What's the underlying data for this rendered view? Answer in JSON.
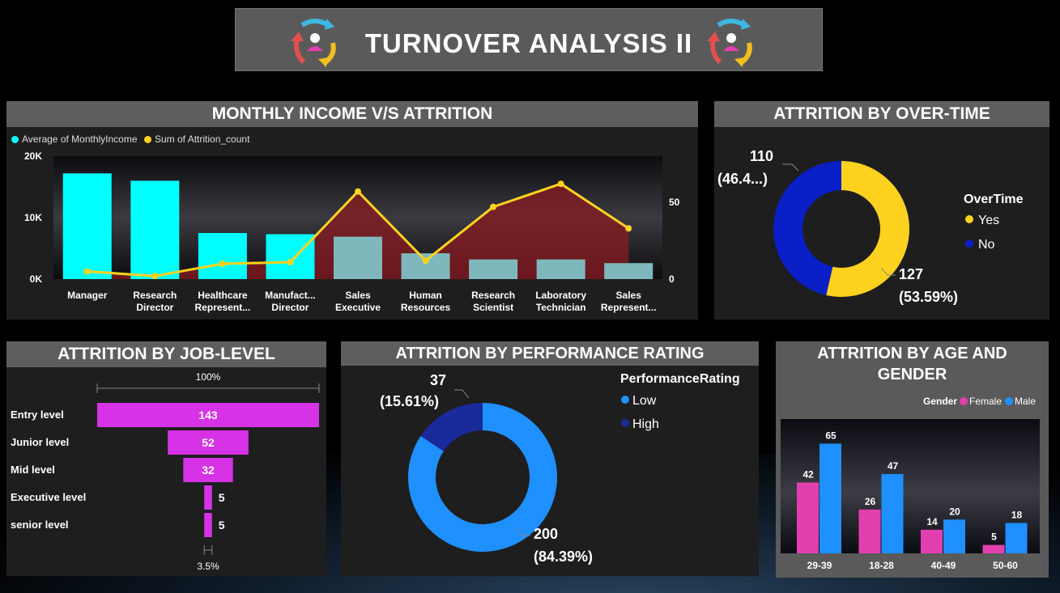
{
  "dashboard": {
    "title": "TURNOVER  ANALYSIS  II",
    "colors": {
      "cyan": "#00ffff",
      "yellow": "#ffd21f",
      "magenta": "#d633e6",
      "pink": "#e040ae",
      "blue": "#1e90ff",
      "navy": "#0a1fc8",
      "darknavy": "#1a2a9a",
      "header": "#5e5e5e",
      "panel": "#1e1e1e"
    }
  },
  "panels": {
    "income": {
      "title": "MONTHLY INCOME V/S ATTRITION",
      "legend_income": "Average of MonthlyIncome",
      "legend_attrition": "Sum of Attrition_count"
    },
    "overtime": {
      "title": "ATTRITION BY OVER-TIME",
      "legend_title": "OverTime"
    },
    "joblevel": {
      "title": "ATTRITION BY JOB-LEVEL",
      "top_label": "100%",
      "bottom_label": "3.5%"
    },
    "performance": {
      "title": "ATTRITION BY PERFORMANCE RATING",
      "legend_title": "PerformanceRating"
    },
    "agegender": {
      "title": "ATTRITION BY AGE AND GENDER",
      "legend_title": "Gender"
    }
  },
  "chart_data": [
    {
      "type": "bar",
      "title": "MONTHLY INCOME V/S ATTRITION",
      "categories": [
        [
          "Manager"
        ],
        [
          "Research",
          "Director"
        ],
        [
          "Healthcare",
          "Represent..."
        ],
        [
          "Manufact...",
          "Director"
        ],
        [
          "Sales",
          "Executive"
        ],
        [
          "Human",
          "Resources"
        ],
        [
          "Research",
          "Scientist"
        ],
        [
          "Laboratory",
          "Technician"
        ],
        [
          "Sales",
          "Represent..."
        ]
      ],
      "series": [
        {
          "name": "Average of MonthlyIncome",
          "kind": "bar",
          "axis": "left",
          "color": "#00ffff",
          "values": [
            17200,
            16000,
            7500,
            7300,
            6900,
            4200,
            3200,
            3200,
            2600
          ]
        },
        {
          "name": "Sum of Attrition_count",
          "kind": "line",
          "axis": "right",
          "color": "#ffd21f",
          "values": [
            5,
            2,
            10,
            11,
            57,
            12,
            47,
            62,
            33
          ]
        }
      ],
      "left_ticks": [
        {
          "v": 0,
          "label": "0K"
        },
        {
          "v": 10000,
          "label": "10K"
        },
        {
          "v": 20000,
          "label": "20K"
        }
      ],
      "right_ticks": [
        {
          "v": 0,
          "label": "0"
        },
        {
          "v": 50,
          "label": "50"
        }
      ],
      "ylim": [
        0,
        20000
      ],
      "y2lim": [
        0,
        80
      ]
    },
    {
      "type": "pie",
      "title": "ATTRITION BY OVER-TIME",
      "slices": [
        {
          "name": "Yes",
          "value": 127,
          "percent": "(53.59%)",
          "color": "#ffd21f"
        },
        {
          "name": "No",
          "value": 110,
          "percent": "(46.4...)",
          "color": "#0a1fc8"
        }
      ]
    },
    {
      "type": "bar",
      "title": "ATTRITION BY JOB-LEVEL",
      "categories": [
        "Entry level",
        "Junior level",
        "Mid level",
        "Executive level",
        "senior level"
      ],
      "values": [
        143,
        52,
        32,
        5,
        5
      ],
      "color": "#d633e6"
    },
    {
      "type": "pie",
      "title": "ATTRITION BY PERFORMANCE RATING",
      "slices": [
        {
          "name": "Low",
          "value": 200,
          "percent": "(84.39%)",
          "color": "#1e90ff"
        },
        {
          "name": "High",
          "value": 37,
          "percent": "(15.61%)",
          "color": "#1a2a9a"
        }
      ]
    },
    {
      "type": "bar",
      "title": "ATTRITION BY AGE AND GENDER",
      "categories": [
        "29-39",
        "18-28",
        "40-49",
        "50-60"
      ],
      "series": [
        {
          "name": "Female",
          "color": "#e040ae",
          "values": [
            42,
            26,
            14,
            5
          ]
        },
        {
          "name": "Male",
          "color": "#1e90ff",
          "values": [
            65,
            47,
            20,
            18
          ]
        }
      ],
      "ylim": [
        0,
        70
      ]
    }
  ]
}
